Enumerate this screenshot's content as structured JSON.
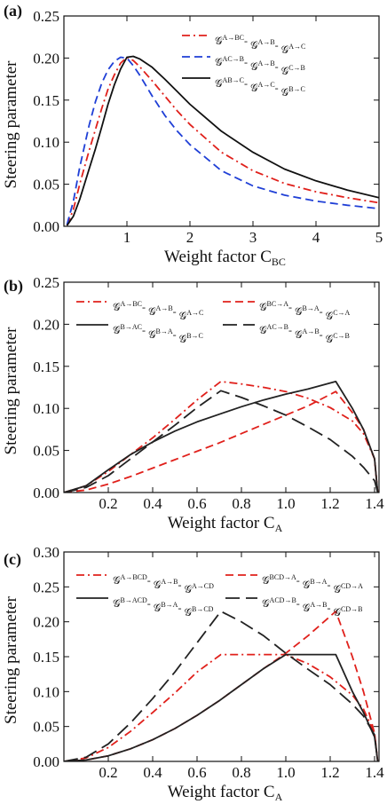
{
  "chart_data": [
    {
      "panel_label": "(a)",
      "type": "line",
      "xlabel": "Weight factor C",
      "xlabel_sub": "BC",
      "ylabel": "Steering parameter",
      "xlim": [
        0,
        5
      ],
      "ylim": [
        0,
        0.25
      ],
      "xticks": [
        "1",
        "2",
        "3",
        "4",
        "5"
      ],
      "yticks": [
        "0.00",
        "0.05",
        "0.10",
        "0.15",
        "0.20",
        "0.25"
      ],
      "xtick_values": [
        1,
        2,
        3,
        4,
        5
      ],
      "ytick_values": [
        0,
        0.05,
        0.1,
        0.15,
        0.2,
        0.25
      ],
      "grid": false,
      "legend_position": "top-right",
      "series": [
        {
          "name": "𝒢A→BC-𝒢A→B-𝒢A→C",
          "color": "#e0201b",
          "dash": "dashdot",
          "x": [
            0.05,
            0.15,
            0.25,
            0.4,
            0.5,
            0.6,
            0.7,
            0.8,
            0.9,
            1.0,
            1.1,
            1.2,
            1.4,
            1.6,
            1.8,
            2.0,
            2.5,
            3.0,
            3.5,
            4.0,
            4.5,
            5.0
          ],
          "y": [
            0.001,
            0.02,
            0.05,
            0.09,
            0.115,
            0.14,
            0.163,
            0.18,
            0.194,
            0.201,
            0.197,
            0.19,
            0.173,
            0.155,
            0.137,
            0.121,
            0.088,
            0.066,
            0.051,
            0.041,
            0.034,
            0.028
          ]
        },
        {
          "name": "𝒢AC→B-𝒢A→B-𝒢C→B",
          "color": "#1f3fd6",
          "dash": "dashed",
          "x": [
            0.05,
            0.15,
            0.25,
            0.4,
            0.5,
            0.6,
            0.7,
            0.8,
            0.9,
            1.0,
            1.1,
            1.2,
            1.4,
            1.6,
            1.8,
            2.0,
            2.5,
            3.0,
            3.5,
            4.0,
            4.5,
            5.0
          ],
          "y": [
            0.002,
            0.03,
            0.07,
            0.12,
            0.148,
            0.17,
            0.186,
            0.196,
            0.201,
            0.2,
            0.191,
            0.18,
            0.155,
            0.132,
            0.113,
            0.097,
            0.066,
            0.048,
            0.037,
            0.03,
            0.025,
            0.021
          ]
        },
        {
          "name": "𝒢AB→C-𝒢A→C-𝒢B→C",
          "color": "#111111",
          "dash": "solid",
          "x": [
            0.05,
            0.15,
            0.25,
            0.4,
            0.5,
            0.6,
            0.7,
            0.8,
            0.9,
            1.0,
            1.1,
            1.2,
            1.4,
            1.6,
            1.8,
            2.0,
            2.5,
            3.0,
            3.5,
            4.0,
            4.5,
            5.0
          ],
          "y": [
            0.001,
            0.012,
            0.032,
            0.068,
            0.092,
            0.118,
            0.145,
            0.168,
            0.187,
            0.201,
            0.202,
            0.199,
            0.189,
            0.175,
            0.16,
            0.145,
            0.113,
            0.088,
            0.068,
            0.054,
            0.043,
            0.034
          ]
        }
      ]
    },
    {
      "panel_label": "(b)",
      "type": "line",
      "xlabel": "Weight factor C",
      "xlabel_sub": "A",
      "ylabel": "Steering parameter",
      "xlim": [
        0,
        1.42
      ],
      "ylim": [
        0,
        0.25
      ],
      "xticks": [
        "0.2",
        "0.4",
        "0.6",
        "0.8",
        "1.0",
        "1.2",
        "1.4"
      ],
      "yticks": [
        "0.00",
        "0.05",
        "0.10",
        "0.15",
        "0.20",
        "0.25"
      ],
      "xtick_values": [
        0.2,
        0.4,
        0.6,
        0.8,
        1.0,
        1.2,
        1.4
      ],
      "ytick_values": [
        0,
        0.05,
        0.1,
        0.15,
        0.2,
        0.25
      ],
      "grid": false,
      "legend_position": "top",
      "series": [
        {
          "name": "𝒢A→BC-𝒢A→B-𝒢A→C",
          "color": "#e0201b",
          "dash": "dashdot",
          "x": [
            0.0,
            0.1,
            0.2,
            0.3,
            0.4,
            0.5,
            0.6,
            0.707,
            0.8,
            0.9,
            1.0,
            1.1,
            1.2,
            1.3,
            1.35,
            1.4,
            1.414
          ],
          "y": [
            0.0,
            0.008,
            0.025,
            0.045,
            0.065,
            0.087,
            0.11,
            0.132,
            0.129,
            0.125,
            0.12,
            0.112,
            0.101,
            0.085,
            0.07,
            0.04,
            0.0
          ]
        },
        {
          "name": "𝒢BC→A-𝒢B→A-𝒢C→A",
          "color": "#e0201b",
          "dash": "dashed",
          "x": [
            0.0,
            0.1,
            0.2,
            0.3,
            0.4,
            0.5,
            0.6,
            0.7,
            0.8,
            0.9,
            1.0,
            1.1,
            1.225,
            1.3,
            1.35,
            1.4,
            1.414
          ],
          "y": [
            0.0,
            0.003,
            0.01,
            0.019,
            0.029,
            0.039,
            0.049,
            0.059,
            0.07,
            0.081,
            0.092,
            0.103,
            0.12,
            0.095,
            0.075,
            0.04,
            0.0
          ]
        },
        {
          "name": "𝒢B→AC-𝒢B→A-𝒢B→C",
          "color": "#222222",
          "dash": "solid",
          "x": [
            0.0,
            0.1,
            0.2,
            0.3,
            0.4,
            0.5,
            0.6,
            0.7,
            0.8,
            0.9,
            1.0,
            1.1,
            1.225,
            1.3,
            1.35,
            1.4,
            1.414
          ],
          "y": [
            0.0,
            0.008,
            0.027,
            0.045,
            0.06,
            0.073,
            0.084,
            0.093,
            0.102,
            0.11,
            0.117,
            0.123,
            0.132,
            0.1,
            0.075,
            0.04,
            0.0
          ]
        },
        {
          "name": "𝒢AC→B-𝒢A→B-𝒢C→B",
          "color": "#222222",
          "dash": "longdash",
          "x": [
            0.0,
            0.1,
            0.2,
            0.3,
            0.4,
            0.5,
            0.6,
            0.707,
            0.8,
            0.9,
            1.0,
            1.1,
            1.2,
            1.3,
            1.35,
            1.4,
            1.414
          ],
          "y": [
            0.0,
            0.006,
            0.02,
            0.04,
            0.06,
            0.08,
            0.101,
            0.121,
            0.113,
            0.103,
            0.092,
            0.078,
            0.063,
            0.043,
            0.03,
            0.014,
            0.0
          ]
        }
      ]
    },
    {
      "panel_label": "(c)",
      "type": "line",
      "xlabel": "Weight factor C",
      "xlabel_sub": "A",
      "ylabel": "Steering parameter",
      "xlim": [
        0,
        1.42
      ],
      "ylim": [
        0,
        0.3
      ],
      "xticks": [
        "0.2",
        "0.4",
        "0.6",
        "0.8",
        "1.0",
        "1.2",
        "1.4"
      ],
      "yticks": [
        "0.00",
        "0.05",
        "0.10",
        "0.15",
        "0.20",
        "0.25",
        "0.30"
      ],
      "xtick_values": [
        0.2,
        0.4,
        0.6,
        0.8,
        1.0,
        1.2,
        1.4
      ],
      "ytick_values": [
        0,
        0.05,
        0.1,
        0.15,
        0.2,
        0.25,
        0.3
      ],
      "grid": false,
      "legend_position": "top",
      "series": [
        {
          "name": "𝒢A→BCD-𝒢A→B-𝒢A→CD",
          "color": "#e0201b",
          "dash": "dashdot",
          "x": [
            0.0,
            0.1,
            0.2,
            0.3,
            0.4,
            0.5,
            0.6,
            0.707,
            0.8,
            0.9,
            1.0,
            1.1,
            1.2,
            1.3,
            1.35,
            1.4,
            1.414
          ],
          "y": [
            0.0,
            0.005,
            0.02,
            0.043,
            0.07,
            0.098,
            0.128,
            0.153,
            0.153,
            0.153,
            0.153,
            0.14,
            0.121,
            0.095,
            0.075,
            0.04,
            0.0
          ]
        },
        {
          "name": "𝒢BCD→A-𝒢B→A-𝒢CD→A",
          "color": "#e0201b",
          "dash": "dashed",
          "x": [
            0.0,
            0.1,
            0.2,
            0.3,
            0.4,
            0.5,
            0.6,
            0.7,
            0.8,
            0.9,
            1.0,
            1.1,
            1.225,
            1.3,
            1.35,
            1.4,
            1.414
          ],
          "y": [
            0.0,
            0.002,
            0.008,
            0.018,
            0.031,
            0.047,
            0.066,
            0.087,
            0.11,
            0.133,
            0.155,
            0.18,
            0.215,
            0.15,
            0.1,
            0.04,
            0.0
          ]
        },
        {
          "name": "𝒢B→ACD-𝒢B→A-𝒢B→CD",
          "color": "#222222",
          "dash": "solid",
          "x": [
            0.0,
            0.1,
            0.2,
            0.3,
            0.4,
            0.5,
            0.6,
            0.7,
            0.8,
            0.9,
            1.0,
            1.1,
            1.225,
            1.3,
            1.35,
            1.4,
            1.414
          ],
          "y": [
            0.0,
            0.002,
            0.008,
            0.018,
            0.031,
            0.047,
            0.066,
            0.087,
            0.11,
            0.133,
            0.153,
            0.153,
            0.153,
            0.1,
            0.07,
            0.035,
            0.0
          ]
        },
        {
          "name": "𝒢ACD→B-𝒢A→B-𝒢CD→B",
          "color": "#222222",
          "dash": "longdash",
          "x": [
            0.0,
            0.1,
            0.2,
            0.3,
            0.4,
            0.5,
            0.6,
            0.707,
            0.8,
            0.9,
            1.0,
            1.1,
            1.2,
            1.3,
            1.35,
            1.4,
            1.414
          ],
          "y": [
            0.0,
            0.006,
            0.025,
            0.055,
            0.09,
            0.128,
            0.17,
            0.215,
            0.2,
            0.18,
            0.155,
            0.132,
            0.11,
            0.082,
            0.065,
            0.038,
            0.0
          ]
        }
      ]
    }
  ],
  "legend_texts": [
    [
      {
        "pre": "𝒢",
        "s1": "A→BC",
        "s2": "A→B",
        "s3": "A→C"
      },
      {
        "pre": "𝒢",
        "s1": "AC→B",
        "s2": "A→B",
        "s3": "C→B"
      },
      {
        "pre": "𝒢",
        "s1": "AB→C",
        "s2": "A→C",
        "s3": "B→C"
      }
    ],
    [
      {
        "pre": "𝒢",
        "s1": "A→BC",
        "s2": "A→B",
        "s3": "A→C"
      },
      {
        "pre": "𝒢",
        "s1": "BC→A",
        "s2": "B→A",
        "s3": "C→A"
      },
      {
        "pre": "𝒢",
        "s1": "B→AC",
        "s2": "B→A",
        "s3": "B→C"
      },
      {
        "pre": "𝒢",
        "s1": "AC→B",
        "s2": "A→B",
        "s3": "C→B"
      }
    ],
    [
      {
        "pre": "𝒢",
        "s1": "A→BCD",
        "s2": "A→B",
        "s3": "A→CD"
      },
      {
        "pre": "𝒢",
        "s1": "BCD→A",
        "s2": "B→A",
        "s3": "CD→A"
      },
      {
        "pre": "𝒢",
        "s1": "B→ACD",
        "s2": "B→A",
        "s3": "B→CD"
      },
      {
        "pre": "𝒢",
        "s1": "ACD→B",
        "s2": "A→B",
        "s3": "CD→B"
      }
    ]
  ]
}
